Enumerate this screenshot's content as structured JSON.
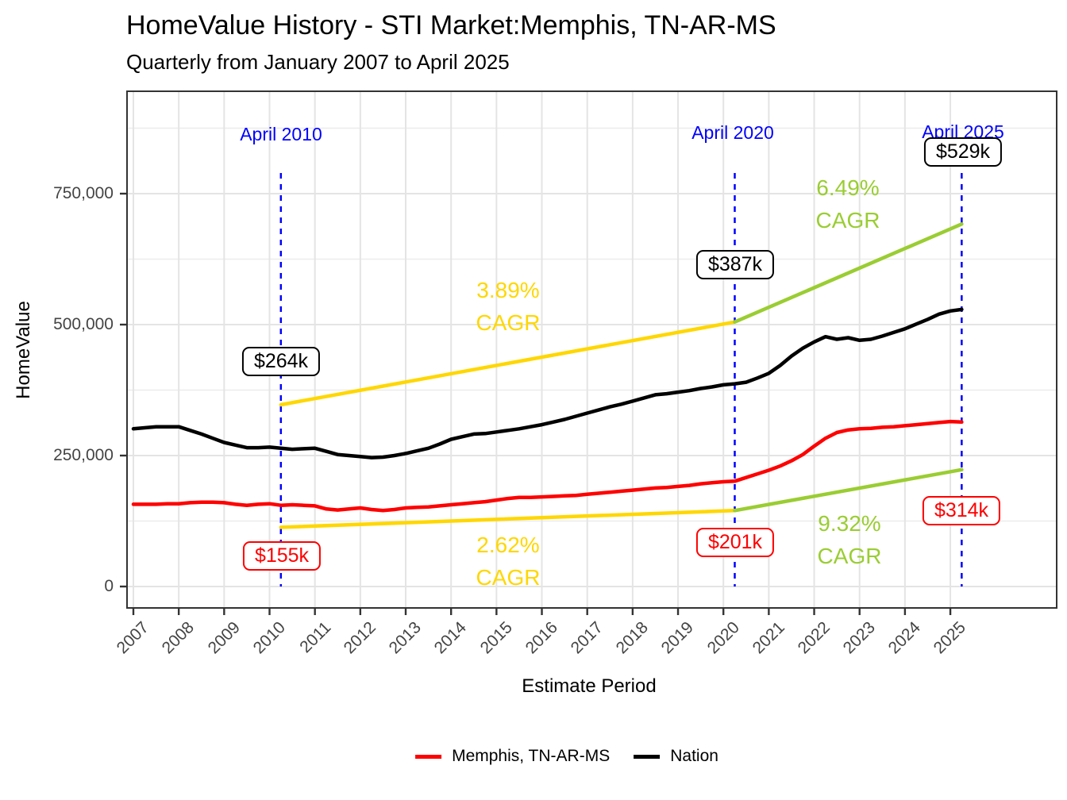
{
  "header": {
    "title": "HomeValue History - STI Market:Memphis, TN-AR-MS",
    "subtitle": "Quarterly from January 2007 to April 2025"
  },
  "axes": {
    "x": {
      "title": "Estimate Period",
      "tick_years": [
        2007,
        2008,
        2009,
        2010,
        2011,
        2012,
        2013,
        2014,
        2015,
        2016,
        2017,
        2018,
        2019,
        2020,
        2021,
        2022,
        2023,
        2024,
        2025
      ]
    },
    "y": {
      "title": "HomeValue",
      "ticks": [
        {
          "value": 0,
          "label": "0"
        },
        {
          "value": 250,
          "label": "250,000"
        },
        {
          "value": 500,
          "label": "500,000"
        },
        {
          "value": 750,
          "label": "750,000"
        }
      ],
      "minor_values": [
        125,
        375,
        625,
        875
      ]
    }
  },
  "colors": {
    "memphis": "#FF0000",
    "nation": "#000000",
    "trend_2010_2020": "#FFD700",
    "trend_2020_2025": "#9ACD32",
    "marker": "#0000FF",
    "grid_major": "#E4E4E4",
    "grid_minor": "#ECECEC",
    "panel_border": "#333333",
    "tick_label": "#444444"
  },
  "chart_data": {
    "type": "line",
    "x_unit": "year_quarterly",
    "x_start": 2007.0,
    "x_step": 0.25,
    "x_end": 2025.25,
    "ylim_thousands": [
      0,
      945
    ],
    "grid": "on",
    "legend_position": "bottom",
    "series": [
      {
        "name": "Nation",
        "color": "#000000",
        "unit": "USD thousands",
        "values": [
          301,
          303,
          305,
          305,
          305,
          298,
          291,
          283,
          275,
          270,
          265,
          265,
          266,
          264,
          262,
          263,
          264,
          258,
          252,
          250,
          248,
          246,
          247,
          250,
          254,
          259,
          264,
          272,
          281,
          286,
          291,
          292,
          295,
          298,
          301,
          305,
          309,
          314,
          319,
          325,
          331,
          337,
          343,
          348,
          354,
          360,
          366,
          368,
          371,
          374,
          378,
          381,
          385,
          387,
          390,
          398,
          407,
          422,
          440,
          455,
          467,
          477,
          472,
          475,
          470,
          472,
          478,
          485,
          492,
          501,
          510,
          520,
          526,
          529
        ]
      },
      {
        "name": "Memphis, TN-AR-MS",
        "color": "#FF0000",
        "unit": "USD thousands",
        "values": [
          157,
          157,
          157,
          158,
          158,
          160,
          161,
          161,
          160,
          157,
          155,
          157,
          158,
          155,
          156,
          155,
          154,
          148,
          146,
          148,
          150,
          147,
          145,
          147,
          150,
          151,
          152,
          154,
          156,
          158,
          160,
          162,
          165,
          168,
          170,
          170,
          171,
          172,
          173,
          174,
          176,
          178,
          180,
          182,
          184,
          186,
          188,
          189,
          191,
          193,
          196,
          198,
          200,
          201,
          208,
          215,
          222,
          230,
          240,
          252,
          268,
          283,
          294,
          299,
          301,
          302,
          304,
          305,
          307,
          309,
          311,
          313,
          315,
          314
        ]
      }
    ],
    "markers": [
      {
        "x": 2010.25,
        "label": "April 2010"
      },
      {
        "x": 2020.25,
        "label": "April 2020"
      },
      {
        "x": 2025.25,
        "label": "April 2025"
      }
    ],
    "trend_lines": [
      {
        "series": "Nation",
        "color": "#FFD700",
        "x1": 2010.25,
        "v1": 347,
        "x2": 2020.25,
        "v2": 505,
        "cagr": "3.89%"
      },
      {
        "series": "Memphis",
        "color": "#FFD700",
        "x1": 2010.25,
        "v1": 113,
        "x2": 2020.25,
        "v2": 145,
        "cagr": "2.62%"
      },
      {
        "series": "Nation",
        "color": "#9ACD32",
        "x1": 2020.25,
        "v1": 505,
        "x2": 2025.25,
        "v2": 692,
        "cagr": "6.49%"
      },
      {
        "series": "Memphis",
        "color": "#9ACD32",
        "x1": 2020.25,
        "v1": 145,
        "x2": 2025.25,
        "v2": 223,
        "cagr": "9.32%"
      }
    ]
  },
  "annotations": {
    "cagr": [
      {
        "rate": "3.89%",
        "caption": "CAGR"
      },
      {
        "rate": "2.62%",
        "caption": "CAGR"
      },
      {
        "rate": "6.49%",
        "caption": "CAGR"
      },
      {
        "rate": "9.32%",
        "caption": "CAGR"
      }
    ],
    "value_labels": [
      {
        "series": "Nation",
        "at": "April 2010",
        "text": "$264k"
      },
      {
        "series": "Nation",
        "at": "April 2020",
        "text": "$387k"
      },
      {
        "series": "Nation",
        "at": "April 2025",
        "text": "$529k"
      },
      {
        "series": "Memphis, TN-AR-MS",
        "at": "April 2010",
        "text": "$155k"
      },
      {
        "series": "Memphis, TN-AR-MS",
        "at": "April 2020",
        "text": "$201k"
      },
      {
        "series": "Memphis, TN-AR-MS",
        "at": "April 2025",
        "text": "$314k"
      }
    ]
  },
  "legend": {
    "items": [
      {
        "label": "Memphis, TN-AR-MS",
        "color": "#FF0000"
      },
      {
        "label": "Nation",
        "color": "#000000"
      }
    ]
  }
}
